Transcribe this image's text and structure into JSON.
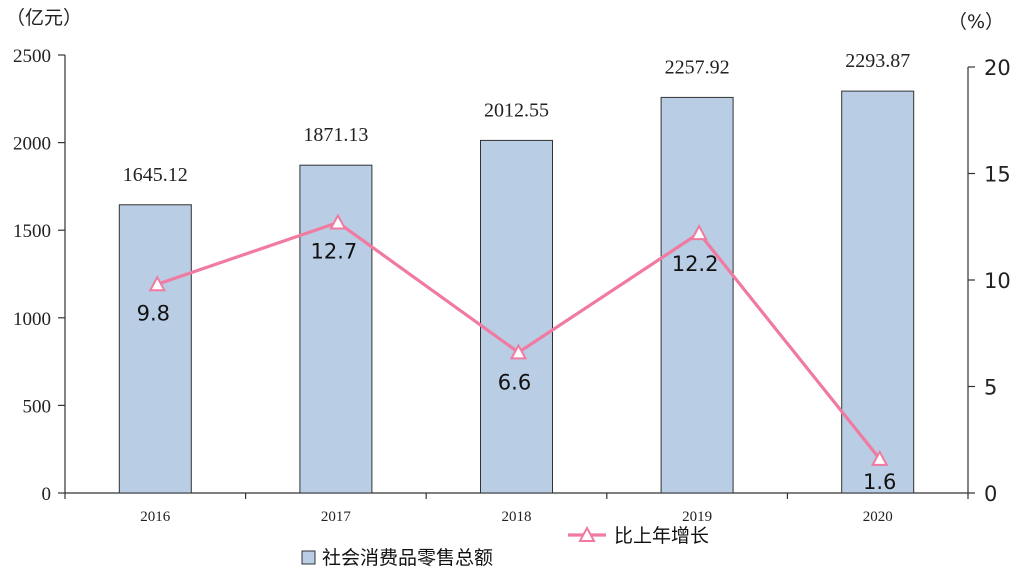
{
  "chart_data": {
    "type": "bar",
    "categories": [
      "2016",
      "2017",
      "2018",
      "2019",
      "2020"
    ],
    "series": [
      {
        "name": "社会消费品零售总额",
        "type": "bar",
        "axis": "left",
        "values": [
          1645.12,
          1871.13,
          2012.55,
          2257.92,
          2293.87
        ],
        "labels": [
          "1645.12",
          "1871.13",
          "2012.55",
          "2257.92",
          "2293.87"
        ],
        "color": "#b9cde5"
      },
      {
        "name": "比上年增长",
        "type": "line",
        "axis": "right",
        "values": [
          9.8,
          12.7,
          6.6,
          12.2,
          1.6
        ],
        "labels": [
          "9.8",
          "12.7",
          "6.6",
          "12.2",
          "1.6"
        ],
        "color": "#f07aa0"
      }
    ],
    "y_left": {
      "unit": "（亿元）",
      "ylim": [
        0,
        2500
      ],
      "ticks": [
        "0",
        "500",
        "1000",
        "1500",
        "2000",
        "2500"
      ]
    },
    "y_right": {
      "unit": "（%）",
      "ylim": [
        0,
        20
      ],
      "ticks": [
        "0",
        "5",
        "10",
        "15",
        "20"
      ]
    },
    "grid": false,
    "legend": {
      "placement": "bottom"
    }
  }
}
